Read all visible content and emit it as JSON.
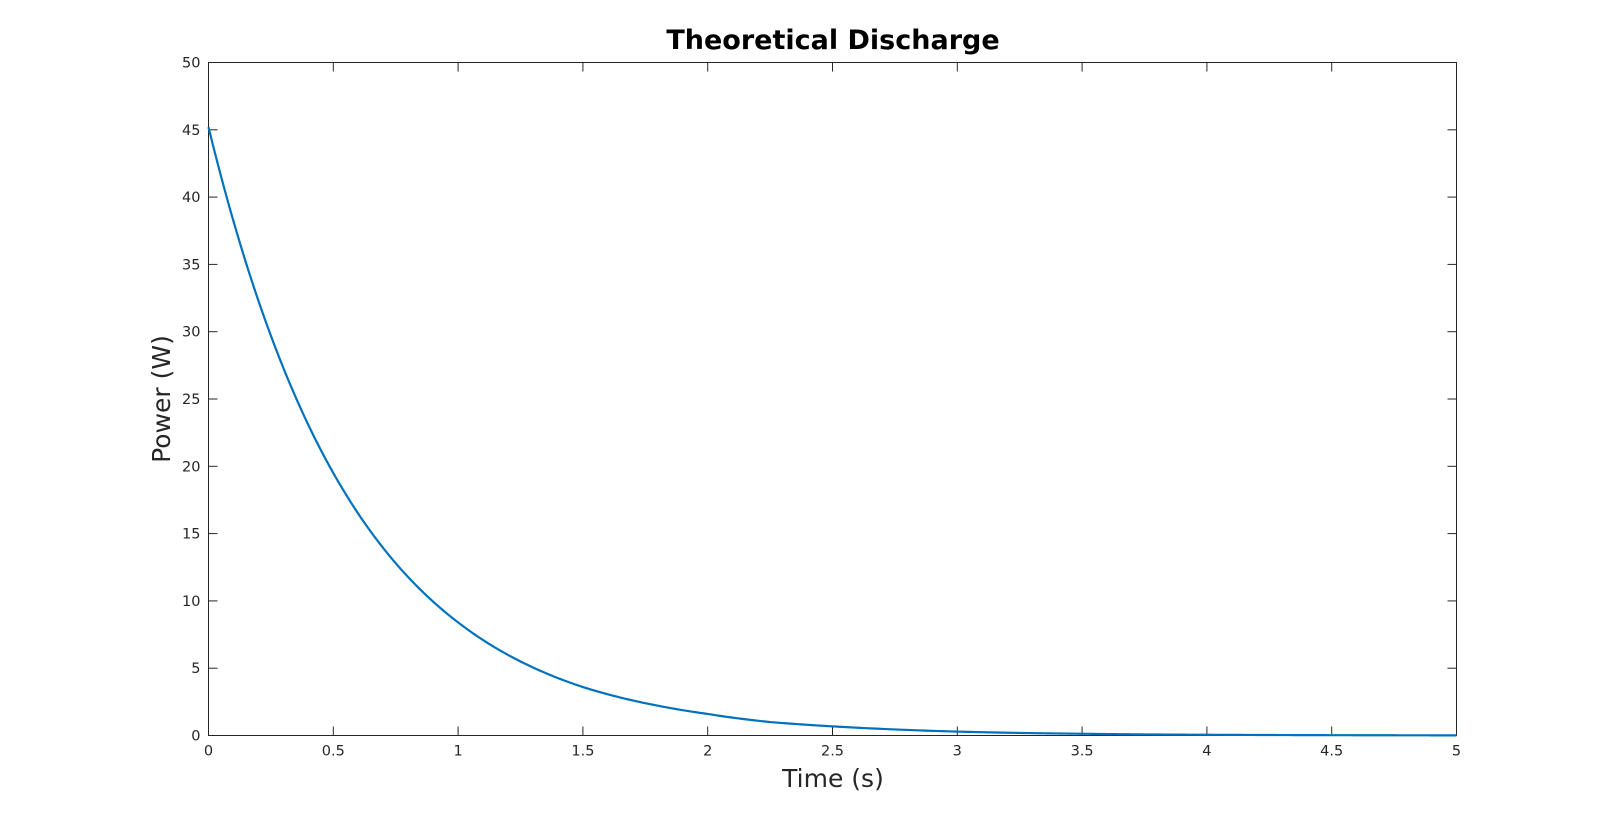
{
  "chart_data": {
    "type": "line",
    "title": "Theoretical Discharge",
    "xlabel": "Time (s)",
    "ylabel": "Power (W)",
    "xlim": [
      0,
      5
    ],
    "ylim": [
      0,
      50
    ],
    "xticks": [
      0,
      0.5,
      1,
      1.5,
      2,
      2.5,
      3,
      3.5,
      4,
      4.5,
      5
    ],
    "xtick_labels": [
      "0",
      "0.5",
      "1",
      "1.5",
      "2",
      "2.5",
      "3",
      "3.5",
      "4",
      "4.5",
      "5"
    ],
    "yticks": [
      0,
      5,
      10,
      15,
      20,
      25,
      30,
      35,
      40,
      45,
      50
    ],
    "ytick_labels": [
      "0",
      "5",
      "10",
      "15",
      "20",
      "25",
      "30",
      "35",
      "40",
      "45",
      "50"
    ],
    "grid": false,
    "box": true,
    "line_color": "#0072BD",
    "series": [
      {
        "x": [
          0,
          0.25,
          0.5,
          0.75,
          1,
          1.25,
          1.5,
          1.75,
          2,
          2.25,
          2.5,
          2.75,
          3,
          3.25,
          3.5,
          3.75,
          4,
          4.25,
          4.5,
          4.75,
          5
        ],
        "y": [
          45.2,
          29.7,
          19.5,
          12.8,
          8.4,
          5.5,
          3.6,
          2.4,
          1.6,
          1.0,
          0.68,
          0.45,
          0.29,
          0.19,
          0.13,
          0.08,
          0.055,
          0.036,
          0.024,
          0.016,
          0.01
        ]
      }
    ]
  }
}
